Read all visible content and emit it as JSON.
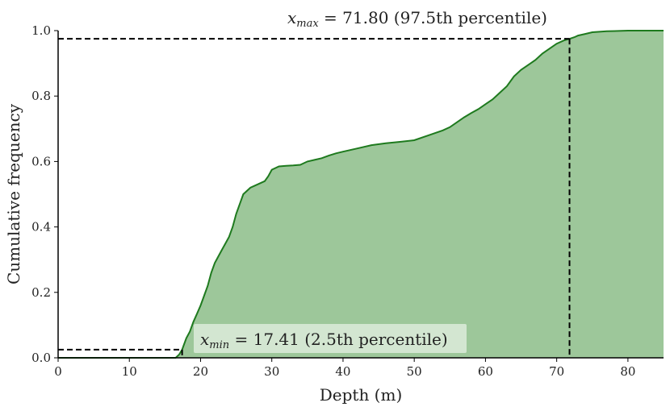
{
  "chart_data": {
    "type": "area",
    "xlabel": "Depth (m)",
    "ylabel": "Cumulative frequency",
    "xlim": [
      0,
      85
    ],
    "ylim": [
      0,
      1.0
    ],
    "x_ticks": [
      0,
      10,
      20,
      30,
      40,
      50,
      60,
      70,
      80
    ],
    "x_tick_labels": [
      "0",
      "10",
      "20",
      "30",
      "40",
      "50",
      "60",
      "70",
      "80"
    ],
    "y_ticks": [
      0.0,
      0.2,
      0.4,
      0.6,
      0.8,
      1.0
    ],
    "y_tick_labels": [
      "0.0",
      "0.2",
      "0.4",
      "0.6",
      "0.8",
      "1.0"
    ],
    "grid": false,
    "colors": {
      "line": "#1e7a1e",
      "fill": "#9dc79a",
      "reference": "#000000"
    },
    "series": [
      {
        "x": [
          0,
          16.5,
          17.0,
          17.41,
          18.0,
          18.5,
          19.0,
          19.5,
          20.0,
          20.5,
          21.0,
          21.5,
          22.0,
          22.5,
          23.0,
          23.5,
          24.0,
          24.5,
          25.0,
          25.5,
          26.0,
          27.0,
          28.0,
          29.0,
          29.5,
          30.0,
          31.0,
          32.0,
          33.0,
          34.0,
          35.0,
          36.0,
          37.0,
          38.0,
          39.0,
          40.0,
          42.0,
          44.0,
          46.0,
          48.0,
          50.0,
          52.0,
          54.0,
          55.0,
          56.0,
          57.0,
          58.0,
          59.0,
          60.0,
          61.0,
          62.0,
          63.0,
          64.0,
          65.0,
          66.0,
          67.0,
          68.0,
          69.0,
          70.0,
          71.0,
          71.8,
          72.5,
          73.0,
          74.0,
          75.0,
          77.0,
          80.0,
          85.0
        ],
        "y": [
          0.0,
          0.0,
          0.01,
          0.025,
          0.06,
          0.08,
          0.11,
          0.135,
          0.16,
          0.19,
          0.22,
          0.26,
          0.29,
          0.31,
          0.33,
          0.35,
          0.37,
          0.4,
          0.44,
          0.47,
          0.5,
          0.52,
          0.53,
          0.54,
          0.555,
          0.575,
          0.585,
          0.587,
          0.588,
          0.59,
          0.6,
          0.605,
          0.61,
          0.618,
          0.625,
          0.63,
          0.64,
          0.65,
          0.656,
          0.66,
          0.665,
          0.68,
          0.695,
          0.705,
          0.72,
          0.735,
          0.748,
          0.76,
          0.775,
          0.79,
          0.81,
          0.83,
          0.86,
          0.88,
          0.895,
          0.91,
          0.93,
          0.945,
          0.96,
          0.97,
          0.975,
          0.98,
          0.985,
          0.99,
          0.995,
          0.998,
          1.0,
          1.0
        ]
      }
    ],
    "annotations": {
      "xmin": {
        "value": 17.41,
        "level": 0.025,
        "var": "x",
        "sub": "min",
        "text": " = 17.41  (2.5th percentile)"
      },
      "xmax": {
        "value": 71.8,
        "level": 0.975,
        "var": "x",
        "sub": "max",
        "text": " = 71.80  (97.5th percentile)"
      }
    }
  }
}
